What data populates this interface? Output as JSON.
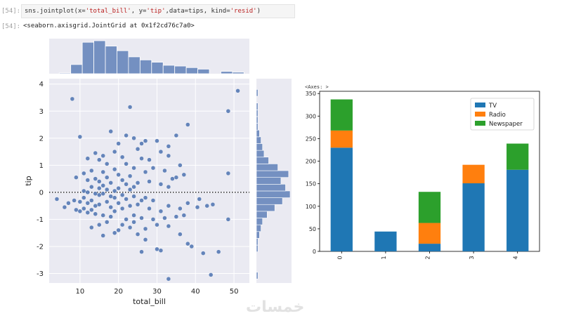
{
  "cells": {
    "in_prompt": "[54]:",
    "code": {
      "parts": [
        {
          "t": "sns.jointplot(x=",
          "c": "plain"
        },
        {
          "t": "'total_bill'",
          "c": "str"
        },
        {
          "t": ", y=",
          "c": "plain"
        },
        {
          "t": "'tip'",
          "c": "str"
        },
        {
          "t": ",data=tips, kind=",
          "c": "plain"
        },
        {
          "t": "'resid'",
          "c": "str"
        },
        {
          "t": ")",
          "c": "plain"
        }
      ]
    },
    "out_prompt": "[54]:",
    "output": "<seaborn.axisgrid.JointGrid at 0x1f2cd76c7a0>",
    "axes_repr": "<Axes: >"
  },
  "watermark": "خمسات",
  "chart_data": [
    {
      "type": "scatter",
      "title": "",
      "xlabel": "total_bill",
      "ylabel": "tip",
      "xlim": [
        2,
        54
      ],
      "ylim": [
        -3.35,
        4.2
      ],
      "xticks": [
        10,
        20,
        30,
        40,
        50
      ],
      "yticks": [
        -3,
        -2,
        -1,
        0,
        1,
        2,
        3,
        4
      ],
      "grid": true,
      "background": "#eaeaf2",
      "point_color": "#4c72b0",
      "reference_line": {
        "y": 0,
        "style": "dotted",
        "color": "#000000"
      },
      "points": [
        [
          8,
          3.45
        ],
        [
          23,
          3.15
        ],
        [
          51,
          3.75
        ],
        [
          48.5,
          3.0
        ],
        [
          10,
          2.05
        ],
        [
          38,
          2.5
        ],
        [
          18,
          2.25
        ],
        [
          22,
          2.1
        ],
        [
          24,
          2.0
        ],
        [
          27,
          1.9
        ],
        [
          20,
          1.8
        ],
        [
          26,
          1.8
        ],
        [
          30,
          1.9
        ],
        [
          35,
          2.1
        ],
        [
          33,
          1.7
        ],
        [
          25,
          1.6
        ],
        [
          19,
          1.5
        ],
        [
          14,
          1.45
        ],
        [
          16,
          1.35
        ],
        [
          21,
          1.3
        ],
        [
          12,
          1.25
        ],
        [
          28,
          1.2
        ],
        [
          31,
          1.5
        ],
        [
          33,
          1.35
        ],
        [
          36,
          1.0
        ],
        [
          15,
          1.2
        ],
        [
          17,
          1.05
        ],
        [
          22,
          1.05
        ],
        [
          26,
          1.25
        ],
        [
          24,
          0.9
        ],
        [
          19,
          0.85
        ],
        [
          13,
          0.8
        ],
        [
          11,
          0.7
        ],
        [
          16,
          0.75
        ],
        [
          20,
          0.65
        ],
        [
          23,
          0.6
        ],
        [
          27,
          0.75
        ],
        [
          29,
          0.9
        ],
        [
          32,
          0.8
        ],
        [
          35,
          0.55
        ],
        [
          37,
          0.65
        ],
        [
          48.5,
          0.7
        ],
        [
          9,
          0.55
        ],
        [
          12,
          0.45
        ],
        [
          14,
          0.5
        ],
        [
          15,
          0.4
        ],
        [
          17,
          0.55
        ],
        [
          18,
          0.35
        ],
        [
          21,
          0.45
        ],
        [
          22,
          0.3
        ],
        [
          25,
          0.35
        ],
        [
          28,
          0.4
        ],
        [
          31,
          0.3
        ],
        [
          33,
          0.2
        ],
        [
          34,
          0.5
        ],
        [
          13,
          0.2
        ],
        [
          15,
          0.15
        ],
        [
          16,
          0.25
        ],
        [
          17,
          0.1
        ],
        [
          19,
          0.05
        ],
        [
          20,
          0.15
        ],
        [
          23,
          0.1
        ],
        [
          24,
          0.2
        ],
        [
          11,
          0.05
        ],
        [
          12,
          0.0
        ],
        [
          14,
          -0.05
        ],
        [
          15,
          -0.1
        ],
        [
          16,
          -0.05
        ],
        [
          18,
          -0.15
        ],
        [
          19,
          -0.2
        ],
        [
          21,
          -0.1
        ],
        [
          22,
          -0.25
        ],
        [
          24,
          -0.15
        ],
        [
          26,
          -0.3
        ],
        [
          27,
          -0.2
        ],
        [
          8.5,
          -0.3
        ],
        [
          10,
          -0.35
        ],
        [
          11,
          -0.2
        ],
        [
          12,
          -0.4
        ],
        [
          13,
          -0.3
        ],
        [
          14,
          -0.5
        ],
        [
          15,
          -0.45
        ],
        [
          17,
          -0.35
        ],
        [
          18,
          -0.55
        ],
        [
          20,
          -0.4
        ],
        [
          21,
          -0.6
        ],
        [
          23,
          -0.5
        ],
        [
          25,
          -0.45
        ],
        [
          28,
          -0.6
        ],
        [
          29,
          -0.3
        ],
        [
          31,
          -0.7
        ],
        [
          33,
          -0.5
        ],
        [
          36,
          -0.6
        ],
        [
          38,
          -0.4
        ],
        [
          41,
          -0.25
        ],
        [
          43,
          -0.5
        ],
        [
          4,
          -0.25
        ],
        [
          6,
          -0.55
        ],
        [
          7,
          -0.4
        ],
        [
          9,
          -0.65
        ],
        [
          10,
          -0.7
        ],
        [
          11,
          -0.6
        ],
        [
          12,
          -0.75
        ],
        [
          13,
          -0.65
        ],
        [
          14,
          -0.8
        ],
        [
          16,
          -0.85
        ],
        [
          18,
          -0.9
        ],
        [
          19,
          -0.7
        ],
        [
          22,
          -1.0
        ],
        [
          24,
          -0.85
        ],
        [
          26,
          -0.95
        ],
        [
          29,
          -1.0
        ],
        [
          32,
          -0.95
        ],
        [
          35,
          -0.9
        ],
        [
          37,
          -0.85
        ],
        [
          48.5,
          -1.0
        ],
        [
          13,
          -1.3
        ],
        [
          15,
          -1.2
        ],
        [
          17,
          -1.1
        ],
        [
          20,
          -1.4
        ],
        [
          21,
          -1.2
        ],
        [
          23,
          -1.3
        ],
        [
          24,
          -1.1
        ],
        [
          27,
          -1.35
        ],
        [
          30,
          -1.2
        ],
        [
          33,
          -1.25
        ],
        [
          36,
          -1.55
        ],
        [
          16,
          -1.6
        ],
        [
          19,
          -1.5
        ],
        [
          25,
          -1.55
        ],
        [
          27,
          -1.75
        ],
        [
          30,
          -2.1
        ],
        [
          31,
          -2.15
        ],
        [
          26,
          -2.2
        ],
        [
          38,
          -1.9
        ],
        [
          39,
          -2.0
        ],
        [
          42,
          -2.25
        ],
        [
          46,
          -2.2
        ],
        [
          44,
          -3.05
        ],
        [
          33,
          -3.2
        ],
        [
          40.5,
          -0.55
        ],
        [
          44.5,
          -0.45
        ]
      ]
    },
    {
      "type": "bar",
      "title": "",
      "subtitle": "marginal histogram of total_bill",
      "bar_color": "#4c72b0",
      "bins": [
        4.6,
        7.6,
        10.6,
        13.6,
        16.6,
        19.6,
        22.6,
        25.6,
        28.6,
        31.6,
        34.6,
        37.6,
        40.6,
        43.6,
        46.6,
        49.6,
        52.6
      ],
      "counts": [
        1,
        12,
        41,
        43,
        36,
        30,
        22,
        18,
        15,
        11,
        10,
        8,
        6,
        0,
        3,
        2
      ]
    },
    {
      "type": "bar",
      "title": "",
      "subtitle": "marginal histogram of tip (horizontal)",
      "bar_color": "#4c72b0",
      "bins": [
        -3.2,
        -2.95,
        -2.7,
        -2.45,
        -2.2,
        -1.95,
        -1.7,
        -1.45,
        -1.2,
        -0.95,
        -0.7,
        -0.45,
        -0.2,
        0.05,
        0.3,
        0.55,
        0.8,
        1.05,
        1.3,
        1.55,
        1.8,
        2.05,
        2.3,
        2.55,
        2.8,
        3.05,
        3.3,
        3.55,
        3.8
      ],
      "counts": [
        1,
        0,
        0,
        0,
        1,
        1,
        2,
        3,
        4,
        7,
        12,
        17,
        22,
        19,
        16,
        21,
        14,
        8,
        5,
        4,
        3,
        2,
        1,
        1,
        1,
        1,
        0,
        1
      ]
    },
    {
      "type": "bar",
      "stacked": true,
      "title": "",
      "xlabel": "",
      "ylabel": "",
      "categories": [
        "0",
        "1",
        "2",
        "3",
        "4"
      ],
      "ylim": [
        0,
        355
      ],
      "yticks": [
        0,
        50,
        100,
        150,
        200,
        250,
        300,
        350
      ],
      "legend_position": "top-right",
      "series": [
        {
          "name": "TV",
          "color": "#1f77b4",
          "values": [
            230,
            44,
            17,
            151,
            181
          ]
        },
        {
          "name": "Radio",
          "color": "#ff7f0e",
          "values": [
            38,
            0,
            46,
            41,
            0
          ]
        },
        {
          "name": "Newspaper",
          "color": "#2ca02c",
          "values": [
            69,
            0,
            69,
            0,
            58
          ]
        }
      ]
    }
  ]
}
